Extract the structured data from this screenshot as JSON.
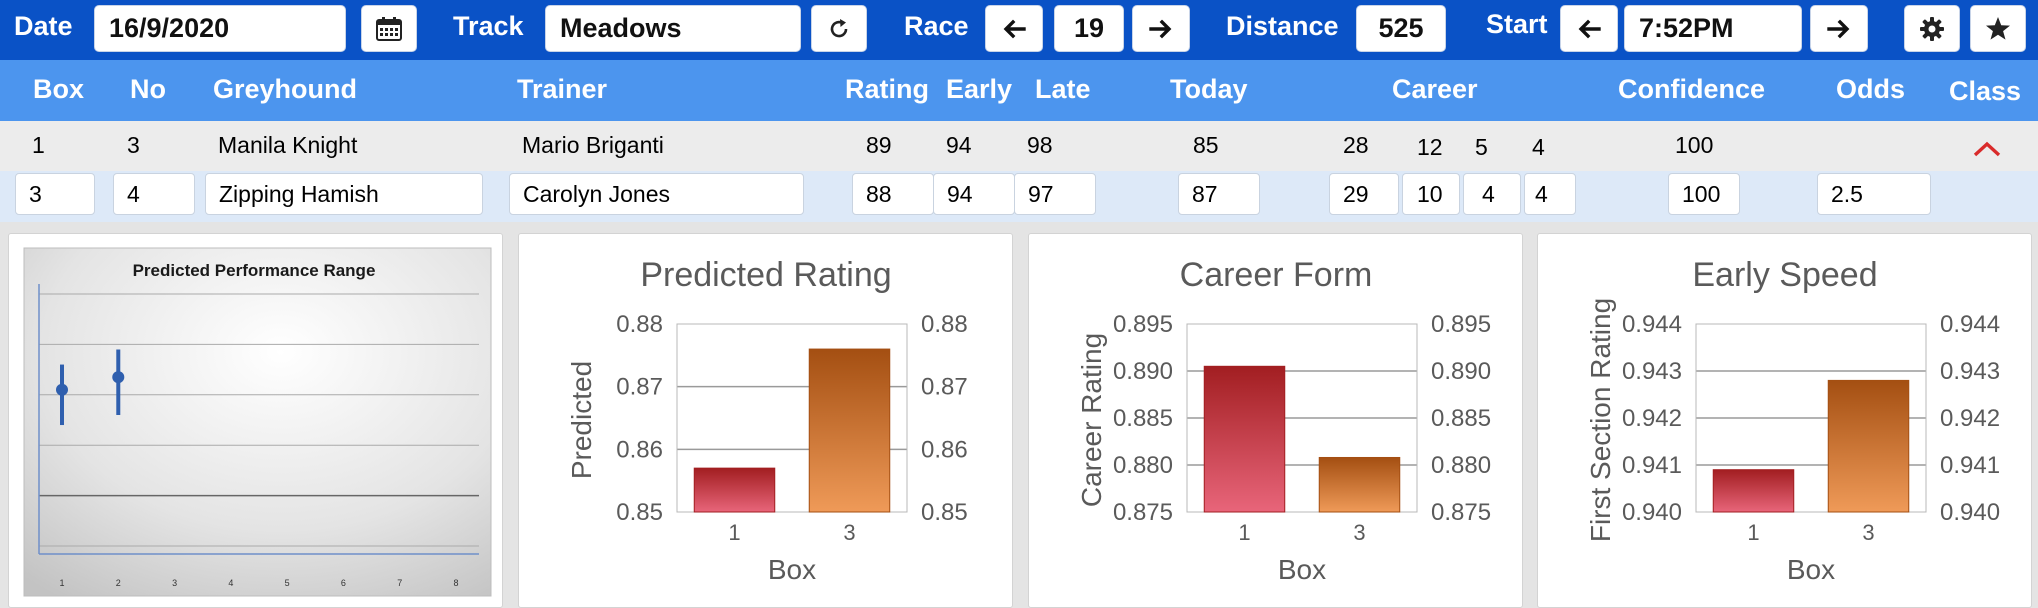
{
  "toolbar": {
    "date_label": "Date",
    "date_value": "16/9/2020",
    "track_label": "Track",
    "track_value": "Meadows",
    "race_label": "Race",
    "race_value": "19",
    "distance_label": "Distance",
    "distance_value": "525",
    "start_label": "Start",
    "start_value": "7:52PM",
    "icons": [
      "calendar-icon",
      "refresh-icon",
      "arrow-left-icon",
      "arrow-right-icon",
      "gear-icon",
      "star-icon"
    ]
  },
  "table": {
    "headers": {
      "box": "Box",
      "no": "No",
      "greyhound": "Greyhound",
      "trainer": "Trainer",
      "rating": "Rating",
      "early": "Early",
      "late": "Late",
      "today": "Today",
      "career": "Career",
      "confidence": "Confidence",
      "odds": "Odds",
      "class": "Class"
    },
    "rows": [
      {
        "box": "1",
        "no": "3",
        "greyhound": "Manila Knight",
        "trainer": "Mario Briganti",
        "rating": "89",
        "early": "94",
        "late": "98",
        "today": "85",
        "career": [
          "28",
          "12",
          "5",
          "4"
        ],
        "confidence": "100",
        "odds": ""
      },
      {
        "box": "3",
        "no": "4",
        "greyhound": "Zipping Hamish",
        "trainer": "Carolyn Jones",
        "rating": "88",
        "early": "94",
        "late": "97",
        "today": "87",
        "career": [
          "29",
          "10",
          "4",
          "4"
        ],
        "confidence": "100",
        "odds": "2.5"
      }
    ],
    "class_icon": "chevron-up-icon",
    "class_icon_color": "#d92b2b"
  },
  "colors": {
    "toolbar_bg": "#0a52c6",
    "header_bg": "#4c95ee",
    "row1_bg": "#ececec",
    "row2_bg": "#dde9f8"
  },
  "chart_data": [
    {
      "type": "scatter",
      "title": "Predicted Performance Range",
      "x_ticks": [
        "1",
        "2",
        "3",
        "4",
        "5",
        "6",
        "7",
        "8"
      ],
      "points": [
        {
          "x": 1,
          "y": 0.62,
          "low": 0.48,
          "high": 0.72
        },
        {
          "x": 2,
          "y": 0.67,
          "low": 0.52,
          "high": 0.78
        }
      ],
      "ylim": [
        0,
        1
      ],
      "grid": true,
      "color": "#2f5fae"
    },
    {
      "type": "bar",
      "title": "Predicted Rating",
      "xlabel": "Box",
      "ylabel": "Predicted",
      "categories": [
        "1",
        "3"
      ],
      "values": [
        0.857,
        0.876
      ],
      "ylim": [
        0.85,
        0.88
      ],
      "yticks": [
        "0.88",
        "0.87",
        "0.86",
        "0.85"
      ],
      "grid": true
    },
    {
      "type": "bar",
      "title": "Career Form",
      "xlabel": "Box",
      "ylabel": "Career Rating",
      "categories": [
        "1",
        "3"
      ],
      "values": [
        0.8905,
        0.8808
      ],
      "ylim": [
        0.875,
        0.895
      ],
      "yticks": [
        "0.895",
        "0.890",
        "0.885",
        "0.880",
        "0.875"
      ],
      "grid": true
    },
    {
      "type": "bar",
      "title": "Early Speed",
      "xlabel": "Box",
      "ylabel": "First Section Rating",
      "categories": [
        "1",
        "3"
      ],
      "values": [
        0.9409,
        0.9428
      ],
      "ylim": [
        0.94,
        0.944
      ],
      "yticks": [
        "0.944",
        "0.943",
        "0.942",
        "0.941",
        "0.940"
      ],
      "grid": true
    }
  ]
}
